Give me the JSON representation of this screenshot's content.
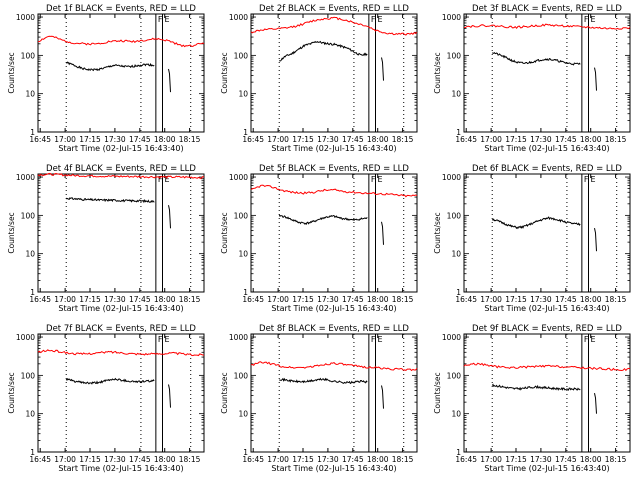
{
  "page": {
    "xaxis_label": "Start Time (02-Jul-15 16:43:40)",
    "yaxis_label": "Counts/sec",
    "time_ticks": [
      "16:45",
      "17:00",
      "17:15",
      "17:30",
      "17:45",
      "18:00",
      "18:15"
    ],
    "y_ticks": [
      "1",
      "10",
      "100",
      "1000"
    ],
    "flag_labels": [
      "F",
      "E"
    ]
  },
  "colors": {
    "events": "#000000",
    "lld": "#ff0000",
    "axes": "#000000",
    "background": "#ffffff"
  },
  "chart_data": [
    {
      "type": "line",
      "title": "Det 1f BLACK = Events, RED = LLD",
      "ylim": [
        1,
        1200
      ],
      "x_range_min": [
        2,
        34
      ],
      "data_end_min": 33.5,
      "series": [
        {
          "name": "Events",
          "start": 16.5,
          "values": [
            65,
            55,
            45,
            42,
            43,
            48,
            55,
            52,
            50,
            55,
            58,
            55
          ]
        },
        {
          "name": "LLD",
          "start": 0,
          "values": [
            230,
            320,
            250,
            210,
            200,
            200,
            230,
            240,
            230,
            250,
            270,
            240,
            180,
            180,
            210
          ]
        }
      ]
    },
    {
      "type": "line",
      "title": "Det 2f BLACK = Events, RED = LLD",
      "ylim": [
        1,
        1200
      ],
      "x_range_min": [
        2,
        34
      ],
      "data_end_min": 28,
      "series": [
        {
          "name": "Events",
          "start": 8,
          "values": [
            70,
            95,
            110,
            140,
            180,
            200,
            230,
            210,
            200,
            190,
            170,
            150,
            120,
            100,
            110
          ]
        },
        {
          "name": "LLD",
          "start": 0,
          "values": [
            400,
            460,
            480,
            500,
            550,
            650,
            800,
            900,
            950,
            850,
            700,
            600,
            450,
            380,
            360,
            360,
            380
          ]
        }
      ]
    },
    {
      "type": "line",
      "title": "Det 3f BLACK = Events, RED = LLD",
      "ylim": [
        1,
        1200
      ],
      "x_range_min": [
        2,
        34
      ],
      "data_end_min": 33.5,
      "series": [
        {
          "name": "Events",
          "start": 8,
          "values": [
            120,
            105,
            90,
            75,
            65,
            62,
            65,
            72,
            78,
            80,
            75,
            68,
            62,
            60,
            60
          ]
        },
        {
          "name": "LLD",
          "start": 0,
          "values": [
            560,
            580,
            600,
            590,
            560,
            540,
            560,
            600,
            620,
            600,
            580,
            560,
            540,
            520,
            500,
            510,
            520
          ]
        }
      ]
    },
    {
      "type": "line",
      "title": "Det 4f BLACK = Events, RED = LLD",
      "ylim": [
        1,
        1200
      ],
      "x_range_min": [
        2,
        34
      ],
      "data_end_min": 28,
      "series": [
        {
          "name": "Events",
          "start": 8,
          "values": [
            280,
            270,
            260,
            255,
            250,
            250,
            245,
            240,
            240,
            235,
            230
          ]
        },
        {
          "name": "LLD",
          "start": 0,
          "values": [
            1150,
            1180,
            1150,
            1100,
            1080,
            1060,
            1050,
            1040,
            1030,
            1020,
            1010,
            1000,
            1000,
            980,
            970
          ]
        }
      ]
    },
    {
      "type": "line",
      "title": "Det 5f BLACK = Events, RED = LLD",
      "ylim": [
        1,
        1200
      ],
      "x_range_min": [
        2,
        34
      ],
      "data_end_min": 28,
      "series": [
        {
          "name": "Events",
          "start": 8,
          "values": [
            100,
            90,
            75,
            65,
            62,
            68,
            80,
            90,
            95,
            85,
            80,
            75,
            80,
            85
          ]
        },
        {
          "name": "LLD",
          "start": 0,
          "values": [
            450,
            600,
            550,
            450,
            400,
            380,
            400,
            450,
            460,
            420,
            400,
            380,
            370,
            360,
            340,
            320,
            330
          ]
        }
      ]
    },
    {
      "type": "line",
      "title": "Det 6f BLACK = Events, RED = LLD",
      "ylim": [
        1,
        1200
      ],
      "x_range_min": [
        2,
        34
      ],
      "data_end_min": 33.5,
      "series": [
        {
          "name": "Events",
          "start": 8,
          "values": [
            80,
            70,
            60,
            52,
            48,
            50,
            58,
            68,
            78,
            85,
            80,
            72,
            65,
            60,
            58
          ]
        }
      ]
    },
    {
      "type": "line",
      "title": "Det 7f BLACK = Events, RED = LLD",
      "ylim": [
        1,
        1200
      ],
      "x_range_min": [
        2,
        34
      ],
      "data_end_min": 28,
      "series": [
        {
          "name": "Events",
          "start": 8,
          "values": [
            80,
            70,
            65,
            62,
            65,
            72,
            80,
            75,
            70,
            68,
            70,
            72
          ]
        },
        {
          "name": "LLD",
          "start": 0,
          "values": [
            400,
            450,
            420,
            380,
            360,
            370,
            390,
            410,
            390,
            370,
            360,
            360,
            370,
            380,
            360,
            340,
            350
          ]
        }
      ]
    },
    {
      "type": "line",
      "title": "Det 8f BLACK = Events, RED = LLD",
      "ylim": [
        1,
        1200
      ],
      "x_range_min": [
        2,
        34
      ],
      "data_end_min": 28,
      "series": [
        {
          "name": "Events",
          "start": 8,
          "values": [
            80,
            75,
            70,
            68,
            70,
            75,
            80,
            72,
            68,
            65,
            65,
            70,
            68
          ]
        },
        {
          "name": "LLD",
          "start": 0,
          "values": [
            180,
            220,
            200,
            170,
            160,
            160,
            170,
            190,
            210,
            190,
            175,
            165,
            160,
            150,
            145,
            140,
            145
          ]
        }
      ]
    },
    {
      "type": "line",
      "title": "Det 9f BLACK = Events, RED = LLD",
      "ylim": [
        1,
        1200
      ],
      "x_range_min": [
        2,
        34
      ],
      "data_end_min": 33.5,
      "series": [
        {
          "name": "Events",
          "start": 8,
          "values": [
            55,
            52,
            48,
            45,
            45,
            48,
            50,
            48,
            46,
            45,
            44,
            44,
            43
          ]
        },
        {
          "name": "LLD",
          "start": 0,
          "values": [
            180,
            200,
            190,
            170,
            160,
            160,
            165,
            170,
            175,
            170,
            165,
            160,
            155,
            150,
            145,
            140,
            145
          ]
        }
      ]
    }
  ]
}
